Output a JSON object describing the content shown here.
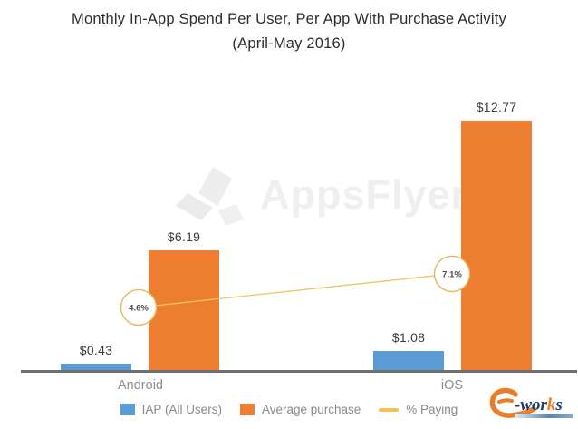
{
  "title": {
    "line1": "Monthly In-App Spend Per User, Per App With Purchase Activity",
    "line2": "(April-May 2016)"
  },
  "watermark": {
    "text": "AppsFlyer"
  },
  "chart_data": {
    "type": "bar",
    "title": "Monthly In-App Spend Per User, Per App With Purchase Activity (April-May 2016)",
    "categories": [
      "Android",
      "iOS"
    ],
    "series": [
      {
        "name": "IAP (All Users)",
        "type": "bar",
        "values": [
          0.43,
          1.08
        ],
        "color": "#5B9BD5",
        "value_labels": [
          "$0.43",
          "$1.08"
        ]
      },
      {
        "name": "Average purchase",
        "type": "bar",
        "values": [
          6.19,
          12.77
        ],
        "color": "#ED7D31",
        "value_labels": [
          "$6.19",
          "$12.77"
        ]
      },
      {
        "name": "% Paying",
        "type": "line",
        "values": [
          4.6,
          7.1
        ],
        "color": "#F2C14E",
        "value_labels": [
          "4.6%",
          "7.1%"
        ]
      }
    ],
    "ylim": [
      0,
      13
    ],
    "y_axis_visible": false,
    "grid": false,
    "legend_position": "bottom"
  },
  "colors": {
    "bar_blue": "#5B9BD5",
    "bar_orange": "#ED7D31",
    "line_yellow": "#EFC65F",
    "swatch_yellow": "#F2C14E",
    "bubble_border": "#E6B855",
    "bubble_text": "#4d4d4d",
    "axis": "#6f6f6f",
    "label_gray": "#8d8d8d",
    "value_text": "#3b3b3b",
    "watermark_gray": "#efefef"
  },
  "footer_logo": {
    "text_e": "e",
    "text_wor": "-wor",
    "text_k": "k",
    "text_s": "s",
    "orange": "#E87D2A",
    "navy": "#1E3B6E"
  }
}
